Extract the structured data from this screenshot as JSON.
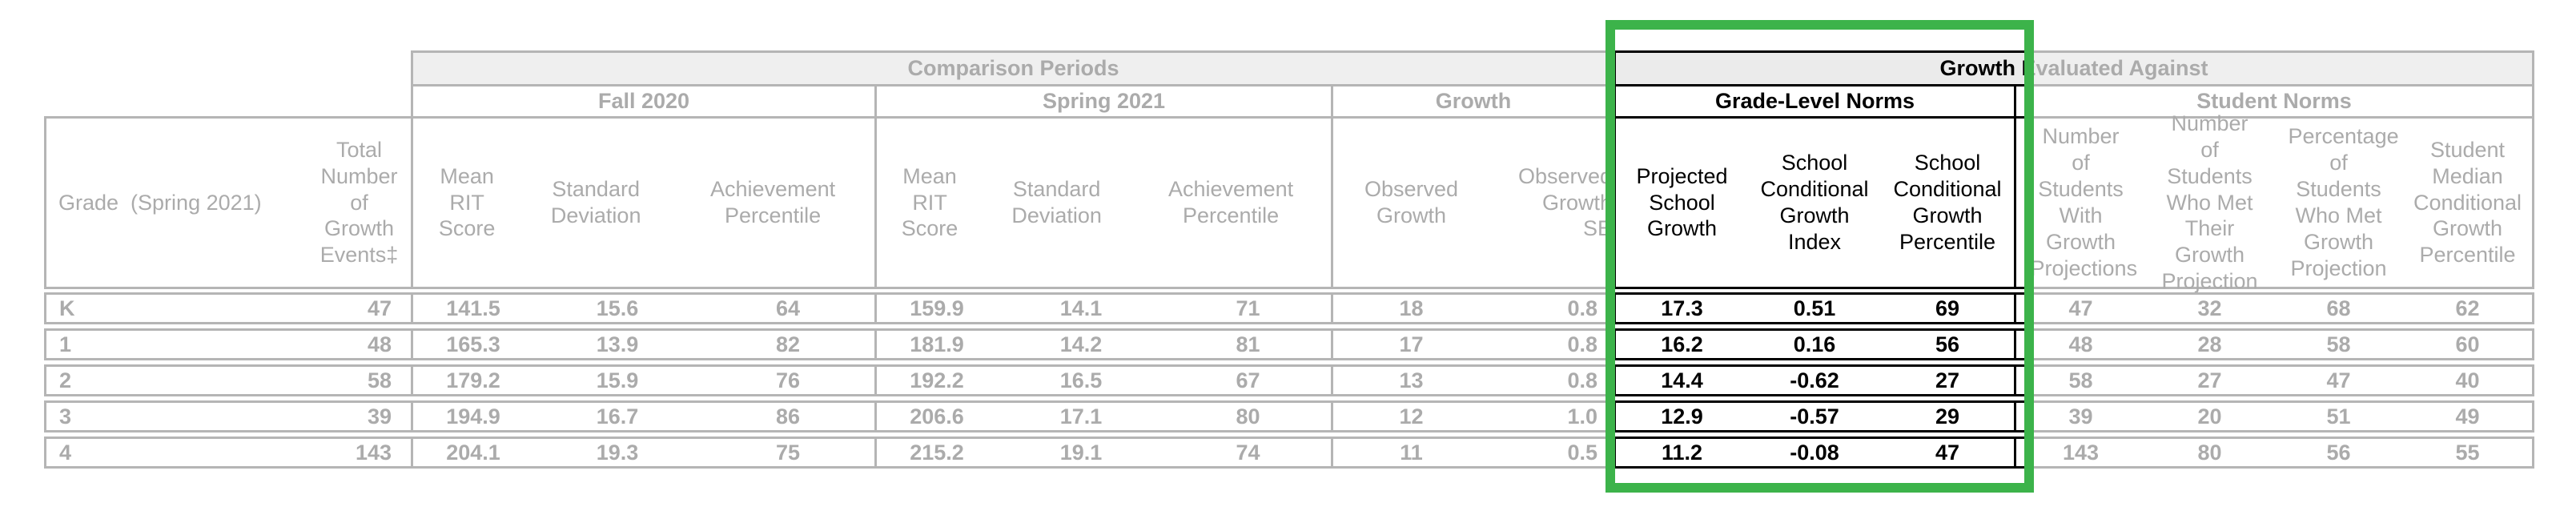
{
  "report_table": {
    "bands": {
      "comparison_periods": "Comparison Periods",
      "growth_evaluated_against": "Growth Evaluated Against"
    },
    "sections": {
      "fall_2020": "Fall 2020",
      "spring_2021": "Spring 2021",
      "growth": "Growth",
      "grade_level_norms": "Grade-Level Norms",
      "student_norms": "Student Norms"
    },
    "columns": {
      "grade": "Grade  (Spring 2021)",
      "total_growth_events": "Total Number of Growth Events‡",
      "mean_rit_score": "Mean RIT Score",
      "standard_deviation": "Standard Deviation",
      "achievement_percentile": "Achievement Percentile",
      "observed_growth": "Observed Growth",
      "observed_growth_se": "Observed Growth SE",
      "projected_school_growth": "Projected School Growth",
      "school_conditional_growth_index": "School Conditional Growth Index",
      "school_conditional_growth_percentile": "School Conditional Growth Percentile",
      "students_with_growth_projections": "Number of Students With Growth Projections",
      "students_met_growth_projection": "Number of Students Who Met Their Growth Projection",
      "percent_met_growth_projection": "Percentage of Students Who Met Growth Projection",
      "student_median_cgp": "Student Median Conditional Growth Percentile"
    },
    "rows": [
      {
        "grade": "K",
        "total_growth_events": "47",
        "fall_mean_rit": "141.5",
        "fall_sd": "15.6",
        "fall_ach_pct": "64",
        "spring_mean_rit": "159.9",
        "spring_sd": "14.1",
        "spring_ach_pct": "71",
        "observed_growth": "18",
        "observed_growth_se": "0.8",
        "projected_school_growth": "17.3",
        "school_cgi": "0.51",
        "school_cgp": "69",
        "n_with_projections": "47",
        "n_met_projection": "32",
        "pct_met_projection": "68",
        "median_cgp": "62"
      },
      {
        "grade": "1",
        "total_growth_events": "48",
        "fall_mean_rit": "165.3",
        "fall_sd": "13.9",
        "fall_ach_pct": "82",
        "spring_mean_rit": "181.9",
        "spring_sd": "14.2",
        "spring_ach_pct": "81",
        "observed_growth": "17",
        "observed_growth_se": "0.8",
        "projected_school_growth": "16.2",
        "school_cgi": "0.16",
        "school_cgp": "56",
        "n_with_projections": "48",
        "n_met_projection": "28",
        "pct_met_projection": "58",
        "median_cgp": "60"
      },
      {
        "grade": "2",
        "total_growth_events": "58",
        "fall_mean_rit": "179.2",
        "fall_sd": "15.9",
        "fall_ach_pct": "76",
        "spring_mean_rit": "192.2",
        "spring_sd": "16.5",
        "spring_ach_pct": "67",
        "observed_growth": "13",
        "observed_growth_se": "0.8",
        "projected_school_growth": "14.4",
        "school_cgi": "-0.62",
        "school_cgp": "27",
        "n_with_projections": "58",
        "n_met_projection": "27",
        "pct_met_projection": "47",
        "median_cgp": "40"
      },
      {
        "grade": "3",
        "total_growth_events": "39",
        "fall_mean_rit": "194.9",
        "fall_sd": "16.7",
        "fall_ach_pct": "86",
        "spring_mean_rit": "206.6",
        "spring_sd": "17.1",
        "spring_ach_pct": "80",
        "observed_growth": "12",
        "observed_growth_se": "1.0",
        "projected_school_growth": "12.9",
        "school_cgi": "-0.57",
        "school_cgp": "29",
        "n_with_projections": "39",
        "n_met_projection": "20",
        "pct_met_projection": "51",
        "median_cgp": "49"
      },
      {
        "grade": "4",
        "total_growth_events": "143",
        "fall_mean_rit": "204.1",
        "fall_sd": "19.3",
        "fall_ach_pct": "75",
        "spring_mean_rit": "215.2",
        "spring_sd": "19.1",
        "spring_ach_pct": "74",
        "observed_growth": "11",
        "observed_growth_se": "0.5",
        "projected_school_growth": "11.2",
        "school_cgi": "-0.08",
        "school_cgp": "47",
        "n_with_projections": "143",
        "n_met_projection": "80",
        "pct_met_projection": "56",
        "median_cgp": "55"
      }
    ],
    "highlight": {
      "shape": "rectangle",
      "color": "#3cb34a",
      "highlighted_section": "Grade-Level Norms"
    },
    "colors": {
      "faded_text": "#ababab",
      "faded_border": "#b5b5b5",
      "band_background": "#efefef",
      "highlighted_text": "#000000"
    }
  }
}
